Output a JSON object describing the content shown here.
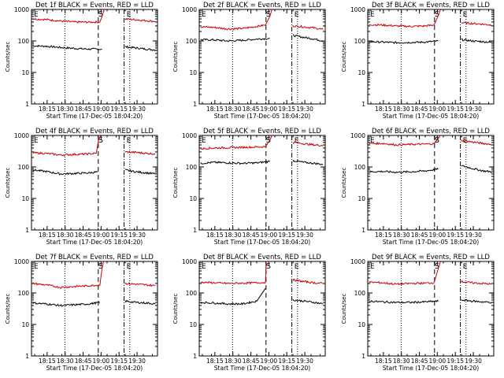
{
  "colors": {
    "events": "#000000",
    "lld": "#cc0000",
    "axis": "#000000",
    "background": "#ffffff"
  },
  "chart_data": [
    {
      "type": "line",
      "title": "Det 1f BLACK = Events, RED = LLD",
      "xlabel": "Start Time (17-Dec-05 18:04:20)",
      "ylabel": "Counts/sec",
      "xlim": [
        18.0,
        19.75
      ],
      "ylim": [
        1,
        1000
      ],
      "yscale": "log",
      "x_ticks": [
        "18:15",
        "18:30",
        "18:45",
        "19:00",
        "19:15",
        "19:30"
      ],
      "y_ticks": [
        "1",
        "10",
        "100",
        "1000"
      ],
      "markers": {
        "e1": "E",
        "s": "S",
        "e2": "E"
      },
      "series": [
        {
          "name": "Events",
          "segments": [
            {
              "x": [
                18.02,
                18.2,
                18.4,
                18.6,
                18.8,
                18.98
              ],
              "y": [
                70,
                68,
                62,
                58,
                55,
                55
              ]
            },
            {
              "x": [
                19.3,
                19.45,
                19.6,
                19.72
              ],
              "y": [
                65,
                60,
                55,
                52
              ]
            }
          ]
        },
        {
          "name": "LLD",
          "segments": [
            {
              "x": [
                18.02,
                18.2,
                18.4,
                18.6,
                18.8,
                18.95,
                18.98,
                19.01
              ],
              "y": [
                500,
                480,
                430,
                400,
                395,
                400,
                600,
                1000
              ]
            },
            {
              "x": [
                19.3,
                19.45,
                19.6,
                19.72
              ],
              "y": [
                500,
                470,
                440,
                420
              ]
            }
          ]
        }
      ]
    },
    {
      "type": "line",
      "title": "Det 2f BLACK = Events, RED = LLD",
      "xlabel": "Start Time (17-Dec-05 18:04:20)",
      "ylabel": "Counts/sec",
      "xlim": [
        18.0,
        19.75
      ],
      "ylim": [
        1,
        1000
      ],
      "yscale": "log",
      "x_ticks": [
        "18:15",
        "18:30",
        "18:45",
        "19:00",
        "19:15",
        "19:30"
      ],
      "y_ticks": [
        "1",
        "10",
        "100",
        "1000"
      ],
      "markers": {
        "e1": "E",
        "s": "S",
        "e2": "E"
      },
      "series": [
        {
          "name": "Events",
          "segments": [
            {
              "x": [
                18.02,
                18.2,
                18.4,
                18.6,
                18.8,
                18.98
              ],
              "y": [
                110,
                108,
                100,
                105,
                115,
                120
              ]
            },
            {
              "x": [
                19.3,
                19.45,
                19.6,
                19.72
              ],
              "y": [
                150,
                130,
                115,
                100
              ]
            }
          ]
        },
        {
          "name": "LLD",
          "segments": [
            {
              "x": [
                18.02,
                18.2,
                18.4,
                18.6,
                18.8,
                18.92,
                18.98,
                19.01
              ],
              "y": [
                280,
                270,
                240,
                250,
                290,
                320,
                600,
                1000
              ]
            },
            {
              "x": [
                19.3,
                19.45,
                19.6,
                19.72
              ],
              "y": [
                300,
                280,
                260,
                230
              ]
            }
          ]
        }
      ]
    },
    {
      "type": "line",
      "title": "Det 3f BLACK = Events, RED = LLD",
      "xlabel": "Start Time (17-Dec-05 18:04:20)",
      "ylabel": "Counts/sec",
      "xlim": [
        18.0,
        19.75
      ],
      "ylim": [
        1,
        1000
      ],
      "yscale": "log",
      "x_ticks": [
        "18:15",
        "18:30",
        "18:45",
        "19:00",
        "19:15",
        "19:30"
      ],
      "y_ticks": [
        "1",
        "10",
        "100",
        "1000"
      ],
      "markers": {
        "e1": "E",
        "s": "S",
        "e2": "E"
      },
      "series": [
        {
          "name": "Events",
          "segments": [
            {
              "x": [
                18.02,
                18.2,
                18.4,
                18.6,
                18.8,
                18.98
              ],
              "y": [
                95,
                92,
                88,
                90,
                92,
                100
              ]
            },
            {
              "x": [
                19.3,
                19.45,
                19.6,
                19.72
              ],
              "y": [
                110,
                100,
                95,
                90
              ]
            }
          ]
        },
        {
          "name": "LLD",
          "segments": [
            {
              "x": [
                18.02,
                18.2,
                18.4,
                18.6,
                18.8,
                18.92,
                18.98,
                19.01
              ],
              "y": [
                330,
                320,
                300,
                290,
                300,
                320,
                650,
                1000
              ]
            },
            {
              "x": [
                19.3,
                19.45,
                19.6,
                19.72
              ],
              "y": [
                380,
                360,
                340,
                320
              ]
            }
          ]
        }
      ]
    },
    {
      "type": "line",
      "title": "Det 4f BLACK = Events, RED = LLD",
      "xlabel": "Start Time (17-Dec-05 18:04:20)",
      "ylabel": "Counts/sec",
      "xlim": [
        18.0,
        19.75
      ],
      "ylim": [
        1,
        1000
      ],
      "yscale": "log",
      "x_ticks": [
        "18:15",
        "18:30",
        "18:45",
        "19:00",
        "19:15",
        "19:30"
      ],
      "y_ticks": [
        "1",
        "10",
        "100",
        "1000"
      ],
      "markers": {
        "e1": "E",
        "s": "S",
        "e2": "E"
      },
      "series": [
        {
          "name": "Events",
          "segments": [
            {
              "x": [
                18.02,
                18.2,
                18.4,
                18.6,
                18.8,
                18.92
              ],
              "y": [
                80,
                72,
                60,
                62,
                65,
                70
              ]
            },
            {
              "x": [
                19.3,
                19.45,
                19.6,
                19.72
              ],
              "y": [
                80,
                70,
                65,
                60
              ]
            }
          ]
        },
        {
          "name": "LLD",
          "segments": [
            {
              "x": [
                18.02,
                18.2,
                18.4,
                18.6,
                18.8,
                18.9,
                18.93,
                18.96
              ],
              "y": [
                280,
                270,
                240,
                250,
                260,
                270,
                700,
                1000
              ]
            },
            {
              "x": [
                19.3,
                19.45,
                19.6,
                19.72
              ],
              "y": [
                300,
                290,
                270,
                260
              ]
            }
          ]
        }
      ]
    },
    {
      "type": "line",
      "title": "Det 5f BLACK = Events, RED = LLD",
      "xlabel": "Start Time (17-Dec-05 18:04:20)",
      "ylabel": "Counts/sec",
      "xlim": [
        18.0,
        19.75
      ],
      "ylim": [
        1,
        1000
      ],
      "yscale": "log",
      "x_ticks": [
        "18:15",
        "18:30",
        "18:45",
        "19:00",
        "19:15",
        "19:30"
      ],
      "y_ticks": [
        "1",
        "10",
        "100",
        "1000"
      ],
      "markers": {
        "e1": "E",
        "s": "S",
        "e2": "E"
      },
      "series": [
        {
          "name": "Events",
          "segments": [
            {
              "x": [
                18.02,
                18.2,
                18.4,
                18.6,
                18.8,
                18.98
              ],
              "y": [
                130,
                140,
                135,
                130,
                135,
                150
              ]
            },
            {
              "x": [
                19.3,
                19.45,
                19.6,
                19.72
              ],
              "y": [
                160,
                140,
                130,
                120
              ]
            }
          ]
        },
        {
          "name": "LLD",
          "segments": [
            {
              "x": [
                18.02,
                18.2,
                18.4,
                18.6,
                18.8,
                18.92,
                18.98,
                19.01
              ],
              "y": [
                380,
                400,
                410,
                420,
                430,
                440,
                700,
                1000
              ]
            },
            {
              "x": [
                19.3,
                19.45,
                19.6,
                19.72
              ],
              "y": [
                600,
                550,
                500,
                480
              ]
            }
          ]
        }
      ]
    },
    {
      "type": "line",
      "title": "Det 6f BLACK = Events, RED = LLD",
      "xlabel": "Start Time (17-Dec-05 18:04:20)",
      "ylabel": "Counts/sec",
      "xlim": [
        18.0,
        19.75
      ],
      "ylim": [
        1,
        1000
      ],
      "yscale": "log",
      "x_ticks": [
        "18:15",
        "18:30",
        "18:45",
        "19:00",
        "19:15",
        "19:30"
      ],
      "y_ticks": [
        "1",
        "10",
        "100",
        "1000"
      ],
      "markers": {
        "e1": "E",
        "s": "S",
        "e2": "E"
      },
      "series": [
        {
          "name": "Events",
          "segments": [
            {
              "x": [
                18.02,
                18.2,
                18.4,
                18.6,
                18.8,
                18.98
              ],
              "y": [
                70,
                72,
                68,
                70,
                75,
                85
              ]
            },
            {
              "x": [
                19.3,
                19.45,
                19.6,
                19.72
              ],
              "y": [
                110,
                90,
                75,
                70
              ]
            }
          ]
        },
        {
          "name": "LLD",
          "segments": [
            {
              "x": [
                18.02,
                18.2,
                18.4,
                18.6,
                18.8,
                18.92,
                18.98,
                19.01
              ],
              "y": [
                550,
                560,
                500,
                520,
                530,
                550,
                800,
                1000
              ]
            },
            {
              "x": [
                19.3,
                19.45,
                19.6,
                19.72
              ],
              "y": [
                700,
                620,
                560,
                520
              ]
            }
          ]
        }
      ]
    },
    {
      "type": "line",
      "title": "Det 7f BLACK = Events, RED = LLD",
      "xlabel": "Start Time (17-Dec-05 18:04:20)",
      "ylabel": "Counts/sec",
      "xlim": [
        18.0,
        19.75
      ],
      "ylim": [
        1,
        1000
      ],
      "yscale": "log",
      "x_ticks": [
        "18:15",
        "18:30",
        "18:45",
        "19:00",
        "19:15",
        "19:30"
      ],
      "y_ticks": [
        "1",
        "10",
        "100",
        "1000"
      ],
      "markers": {
        "e1": "E",
        "s": "S",
        "e2": "E"
      },
      "series": [
        {
          "name": "Events",
          "segments": [
            {
              "x": [
                18.02,
                18.2,
                18.4,
                18.6,
                18.8,
                18.95
              ],
              "y": [
                48,
                45,
                40,
                42,
                45,
                50
              ]
            },
            {
              "x": [
                19.3,
                19.45,
                19.6,
                19.72
              ],
              "y": [
                55,
                50,
                48,
                45
              ]
            }
          ]
        },
        {
          "name": "LLD",
          "segments": [
            {
              "x": [
                18.02,
                18.2,
                18.4,
                18.6,
                18.8,
                18.95,
                18.98,
                19.0
              ],
              "y": [
                200,
                180,
                150,
                160,
                170,
                180,
                600,
                1000
              ]
            },
            {
              "x": [
                19.3,
                19.45,
                19.6,
                19.72
              ],
              "y": [
                200,
                190,
                180,
                170
              ]
            }
          ]
        }
      ]
    },
    {
      "type": "line",
      "title": "Det 8f BLACK = Events, RED = LLD",
      "xlabel": "Start Time (17-Dec-05 18:04:20)",
      "ylabel": "Counts/sec",
      "xlim": [
        18.0,
        19.75
      ],
      "ylim": [
        1,
        1000
      ],
      "yscale": "log",
      "x_ticks": [
        "18:15",
        "18:30",
        "18:45",
        "19:00",
        "19:15",
        "19:30"
      ],
      "y_ticks": [
        "1",
        "10",
        "100",
        "1000"
      ],
      "markers": {
        "e1": "E",
        "s": "S",
        "e2": "E"
      },
      "series": [
        {
          "name": "Events",
          "segments": [
            {
              "x": [
                18.02,
                18.2,
                18.4,
                18.6,
                18.8,
                18.92
              ],
              "y": [
                50,
                48,
                45,
                45,
                55,
                140
              ]
            },
            {
              "x": [
                19.3,
                19.45,
                19.6,
                19.72
              ],
              "y": [
                60,
                55,
                50,
                45
              ]
            }
          ]
        },
        {
          "name": "LLD",
          "segments": [
            {
              "x": [
                18.02,
                18.2,
                18.4,
                18.6,
                18.8,
                18.92,
                18.93
              ],
              "y": [
                220,
                210,
                200,
                205,
                210,
                215,
                1000
              ]
            },
            {
              "x": [
                19.3,
                19.45,
                19.6,
                19.72
              ],
              "y": [
                260,
                230,
                210,
                200
              ]
            }
          ]
        }
      ]
    },
    {
      "type": "line",
      "title": "Det 9f BLACK = Events, RED = LLD",
      "xlabel": "Start Time (17-Dec-05 18:04:20)",
      "ylabel": "Counts/sec",
      "xlim": [
        18.0,
        19.75
      ],
      "ylim": [
        1,
        1000
      ],
      "yscale": "log",
      "x_ticks": [
        "18:15",
        "18:30",
        "18:45",
        "19:00",
        "19:15",
        "19:30"
      ],
      "y_ticks": [
        "1",
        "10",
        "100",
        "1000"
      ],
      "markers": {
        "e1": "E",
        "s": "S",
        "e2": "E"
      },
      "series": [
        {
          "name": "Events",
          "segments": [
            {
              "x": [
                18.02,
                18.2,
                18.4,
                18.6,
                18.8,
                18.98
              ],
              "y": [
                55,
                52,
                50,
                50,
                52,
                55
              ]
            },
            {
              "x": [
                19.3,
                19.45,
                19.6,
                19.72
              ],
              "y": [
                60,
                55,
                52,
                50
              ]
            }
          ]
        },
        {
          "name": "LLD",
          "segments": [
            {
              "x": [
                18.02,
                18.2,
                18.4,
                18.6,
                18.8,
                18.92,
                18.98,
                19.01
              ],
              "y": [
                220,
                210,
                190,
                200,
                205,
                210,
                600,
                1000
              ]
            },
            {
              "x": [
                19.3,
                19.45,
                19.6,
                19.72
              ],
              "y": [
                230,
                210,
                200,
                190
              ]
            }
          ]
        }
      ]
    }
  ]
}
